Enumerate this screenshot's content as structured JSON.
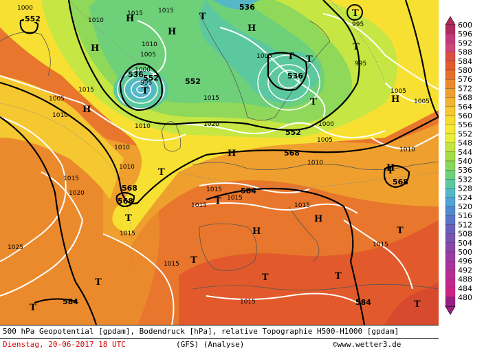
{
  "footer": {
    "line1": "500 hPa Geopotential [gpdam], Bodendruck [hPa], relative Topographie H500-H1000 [gpdam]",
    "date": "Dienstag, 20-06-2017  18 UTC",
    "model": "(GFS)  (Analyse)",
    "credit": "©www.wetter3.de"
  },
  "legend": {
    "unit": "gpdam",
    "levels": [
      "600",
      "596",
      "592",
      "588",
      "584",
      "580",
      "576",
      "572",
      "568",
      "564",
      "560",
      "556",
      "552",
      "548",
      "544",
      "540",
      "536",
      "532",
      "528",
      "524",
      "520",
      "516",
      "512",
      "508",
      "504",
      "500",
      "496",
      "492",
      "488",
      "484",
      "480"
    ],
    "colors": [
      "#b02a5e",
      "#c4397a",
      "#d0447a",
      "#dd4f3f",
      "#e25a2b",
      "#e6702b",
      "#eb8a2c",
      "#ef9f2e",
      "#f2b32f",
      "#f5c731",
      "#f8dc2f",
      "#f7ea32",
      "#e9ef39",
      "#c3e443",
      "#a2dc49",
      "#88d65a",
      "#6fd07a",
      "#5cc8a0",
      "#55b8c7",
      "#4fa3d6",
      "#5089cf",
      "#5a73c4",
      "#6b5fbb",
      "#7b52b2",
      "#8a45a8",
      "#9a3aa1",
      "#a8339a",
      "#b72c93",
      "#c3278c",
      "#ce2386",
      "#9a1f84"
    ]
  },
  "map": {
    "contour_labels_gpdam": [
      "552",
      "536",
      "552",
      "536",
      "552",
      "568",
      "568",
      "568",
      "584",
      "568",
      "536",
      "584",
      "584",
      "552"
    ],
    "contour_labels_hpa": [
      "1000",
      "1010",
      "1015",
      "1015",
      "1010",
      "1005",
      "1000",
      "995",
      "995",
      "1015",
      "1005",
      "1010",
      "1015",
      "1020",
      "1025",
      "1015",
      "1010",
      "1015",
      "1020",
      "1005",
      "995",
      "1000",
      "1010",
      "1005",
      "1010",
      "1015",
      "1015",
      "1010",
      "1015",
      "1015",
      "1015",
      "1015",
      "1005",
      "1005",
      "1015",
      "1010"
    ],
    "pressure_centers": [
      {
        "type": "H"
      },
      {
        "type": "H"
      },
      {
        "type": "H"
      },
      {
        "type": "H"
      },
      {
        "type": "H"
      },
      {
        "type": "H"
      },
      {
        "type": "H"
      },
      {
        "type": "H"
      },
      {
        "type": "H"
      },
      {
        "type": "H"
      },
      {
        "type": "T"
      },
      {
        "type": "T"
      },
      {
        "type": "T"
      },
      {
        "type": "T"
      },
      {
        "type": "T"
      },
      {
        "type": "T"
      },
      {
        "type": "T"
      },
      {
        "type": "T"
      },
      {
        "type": "T"
      },
      {
        "type": "T"
      },
      {
        "type": "T"
      },
      {
        "type": "T"
      },
      {
        "type": "T"
      },
      {
        "type": "T"
      },
      {
        "type": "T"
      },
      {
        "type": "T"
      },
      {
        "type": "T"
      },
      {
        "type": "T"
      }
    ]
  }
}
